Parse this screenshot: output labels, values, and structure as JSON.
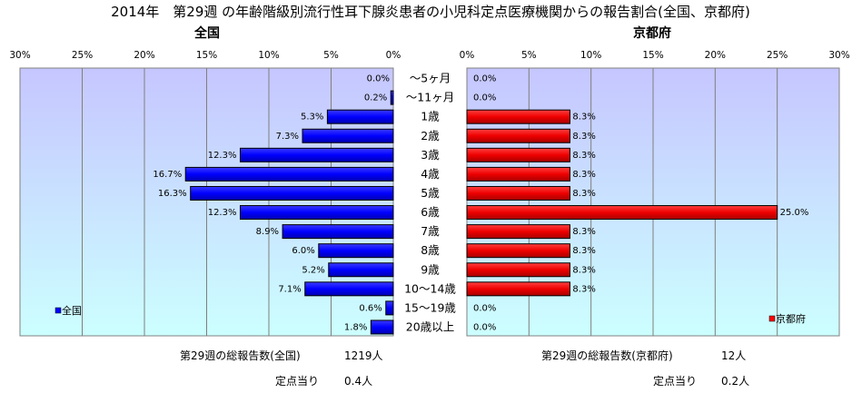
{
  "title": "2014年　第29週 の年齢階級別流行性耳下腺炎患者の小児科定点医療機関からの報告割合(全国、京都府)",
  "chart_data": [
    {
      "type": "bar",
      "orientation": "horizontal",
      "title": "全国",
      "direction": "reversed",
      "xlim": [
        0,
        30
      ],
      "ticks": [
        "30%",
        "25%",
        "20%",
        "15%",
        "10%",
        "5%",
        "0%"
      ],
      "categories": [
        "〜5ヶ月",
        "〜11ヶ月",
        "1歳",
        "2歳",
        "3歳",
        "4歳",
        "5歳",
        "6歳",
        "7歳",
        "8歳",
        "9歳",
        "10〜14歳",
        "15〜19歳",
        "20歳以上"
      ],
      "series": [
        {
          "name": "全国",
          "color": "#0000ff",
          "values": [
            0.0,
            0.2,
            5.3,
            7.3,
            12.3,
            16.7,
            16.3,
            12.3,
            8.9,
            6.0,
            5.2,
            7.1,
            0.6,
            1.8
          ],
          "labels": [
            "0.0%",
            "0.2%",
            "5.3%",
            "7.3%",
            "12.3%",
            "16.7%",
            "16.3%",
            "12.3%",
            "8.9%",
            "6.0%",
            "5.2%",
            "7.1%",
            "0.6%",
            "1.8%"
          ]
        }
      ],
      "legend": "bottom-left",
      "grid": true,
      "background": "gradient light blue to light cyan"
    },
    {
      "type": "bar",
      "orientation": "horizontal",
      "title": "京都府",
      "xlim": [
        0,
        30
      ],
      "ticks": [
        "0%",
        "5%",
        "10%",
        "15%",
        "20%",
        "25%",
        "30%"
      ],
      "categories": [
        "〜5ヶ月",
        "〜11ヶ月",
        "1歳",
        "2歳",
        "3歳",
        "4歳",
        "5歳",
        "6歳",
        "7歳",
        "8歳",
        "9歳",
        "10〜14歳",
        "15〜19歳",
        "20歳以上"
      ],
      "series": [
        {
          "name": "京都府",
          "color": "#ff0000",
          "values": [
            0.0,
            0.0,
            8.3,
            8.3,
            8.3,
            8.3,
            8.3,
            25.0,
            8.3,
            8.3,
            8.3,
            8.3,
            0.0,
            0.0
          ],
          "labels": [
            "0.0%",
            "0.0%",
            "8.3%",
            "8.3%",
            "8.3%",
            "8.3%",
            "8.3%",
            "25.0%",
            "8.3%",
            "8.3%",
            "8.3%",
            "8.3%",
            "0.0%",
            "0.0%"
          ]
        }
      ],
      "legend": "bottom-right",
      "grid": true,
      "background": "gradient light blue to light cyan"
    }
  ],
  "footer": {
    "national_total_label": "第29週の総報告数(全国)",
    "national_total_value": "1219人",
    "national_per_label": "定点当り",
    "national_per_value": "0.4人",
    "kyoto_total_label": "第29週の総報告数(京都府)",
    "kyoto_total_value": "12人",
    "kyoto_per_label": "定点当り",
    "kyoto_per_value": "0.2人"
  }
}
